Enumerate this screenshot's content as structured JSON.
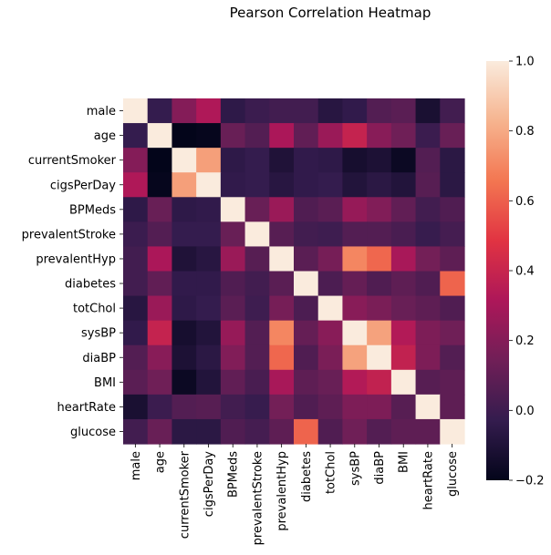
{
  "chart_data": {
    "type": "heatmap",
    "title": "Pearson Correlation Heatmap",
    "xlabel": "",
    "ylabel": "",
    "labels": [
      "male",
      "age",
      "currentSmoker",
      "cigsPerDay",
      "BPMeds",
      "prevalentStroke",
      "prevalentHyp",
      "diabetes",
      "totChol",
      "sysBP",
      "diaBP",
      "BMI",
      "heartRate",
      "glucose"
    ],
    "matrix": [
      [
        1.0,
        -0.03,
        0.2,
        0.32,
        -0.05,
        -0.01,
        0.01,
        0.01,
        -0.07,
        -0.04,
        0.06,
        0.08,
        -0.12,
        0.01
      ],
      [
        -0.03,
        1.0,
        -0.21,
        -0.19,
        0.12,
        0.06,
        0.31,
        0.1,
        0.26,
        0.39,
        0.21,
        0.14,
        -0.01,
        0.12
      ],
      [
        0.2,
        -0.21,
        1.0,
        0.77,
        -0.05,
        -0.03,
        -0.1,
        -0.04,
        -0.05,
        -0.13,
        -0.11,
        -0.17,
        0.06,
        -0.06
      ],
      [
        0.32,
        -0.19,
        0.77,
        1.0,
        -0.04,
        -0.03,
        -0.07,
        -0.04,
        -0.03,
        -0.09,
        -0.06,
        -0.09,
        0.07,
        -0.06
      ],
      [
        -0.05,
        0.12,
        -0.05,
        -0.04,
        1.0,
        0.12,
        0.26,
        0.05,
        0.08,
        0.25,
        0.19,
        0.1,
        0.01,
        0.05
      ],
      [
        -0.01,
        0.06,
        -0.03,
        -0.03,
        0.12,
        1.0,
        0.07,
        0.01,
        0.0,
        0.06,
        0.06,
        0.03,
        -0.02,
        0.02
      ],
      [
        0.01,
        0.31,
        -0.1,
        -0.07,
        0.26,
        0.07,
        1.0,
        0.08,
        0.16,
        0.7,
        0.62,
        0.3,
        0.15,
        0.09
      ],
      [
        0.01,
        0.1,
        -0.04,
        -0.04,
        0.05,
        0.01,
        0.08,
        1.0,
        0.04,
        0.11,
        0.05,
        0.09,
        0.05,
        0.61
      ],
      [
        -0.07,
        0.26,
        -0.05,
        -0.03,
        0.08,
        0.0,
        0.16,
        0.04,
        1.0,
        0.21,
        0.17,
        0.12,
        0.09,
        0.05
      ],
      [
        -0.04,
        0.39,
        -0.13,
        -0.09,
        0.25,
        0.06,
        0.7,
        0.11,
        0.21,
        1.0,
        0.78,
        0.33,
        0.18,
        0.14
      ],
      [
        0.06,
        0.21,
        -0.11,
        -0.06,
        0.19,
        0.06,
        0.62,
        0.05,
        0.17,
        0.78,
        1.0,
        0.38,
        0.18,
        0.06
      ],
      [
        0.08,
        0.14,
        -0.17,
        -0.09,
        0.1,
        0.03,
        0.3,
        0.09,
        0.12,
        0.33,
        0.38,
        1.0,
        0.07,
        0.09
      ],
      [
        -0.12,
        -0.01,
        0.06,
        0.07,
        0.01,
        -0.02,
        0.15,
        0.05,
        0.09,
        0.18,
        0.18,
        0.07,
        1.0,
        0.09
      ],
      [
        0.01,
        0.12,
        -0.06,
        -0.06,
        0.05,
        0.02,
        0.09,
        0.61,
        0.05,
        0.14,
        0.06,
        0.09,
        0.09,
        1.0
      ]
    ],
    "colorbar": {
      "min": -0.2,
      "max": 1.0,
      "ticks": [
        -0.2,
        0.0,
        0.2,
        0.4,
        0.6,
        0.8,
        1.0
      ],
      "tick_labels": [
        "−0.2",
        "0.0",
        "0.2",
        "0.4",
        "0.6",
        "0.8",
        "1.0"
      ],
      "colormap": "rocket",
      "stops": [
        "#03051a",
        "#341c4e",
        "#701f57",
        "#ad1759",
        "#e13342",
        "#f37651",
        "#f6b48f",
        "#faebdd"
      ]
    },
    "grid": false,
    "legend": "colorbar-right"
  }
}
